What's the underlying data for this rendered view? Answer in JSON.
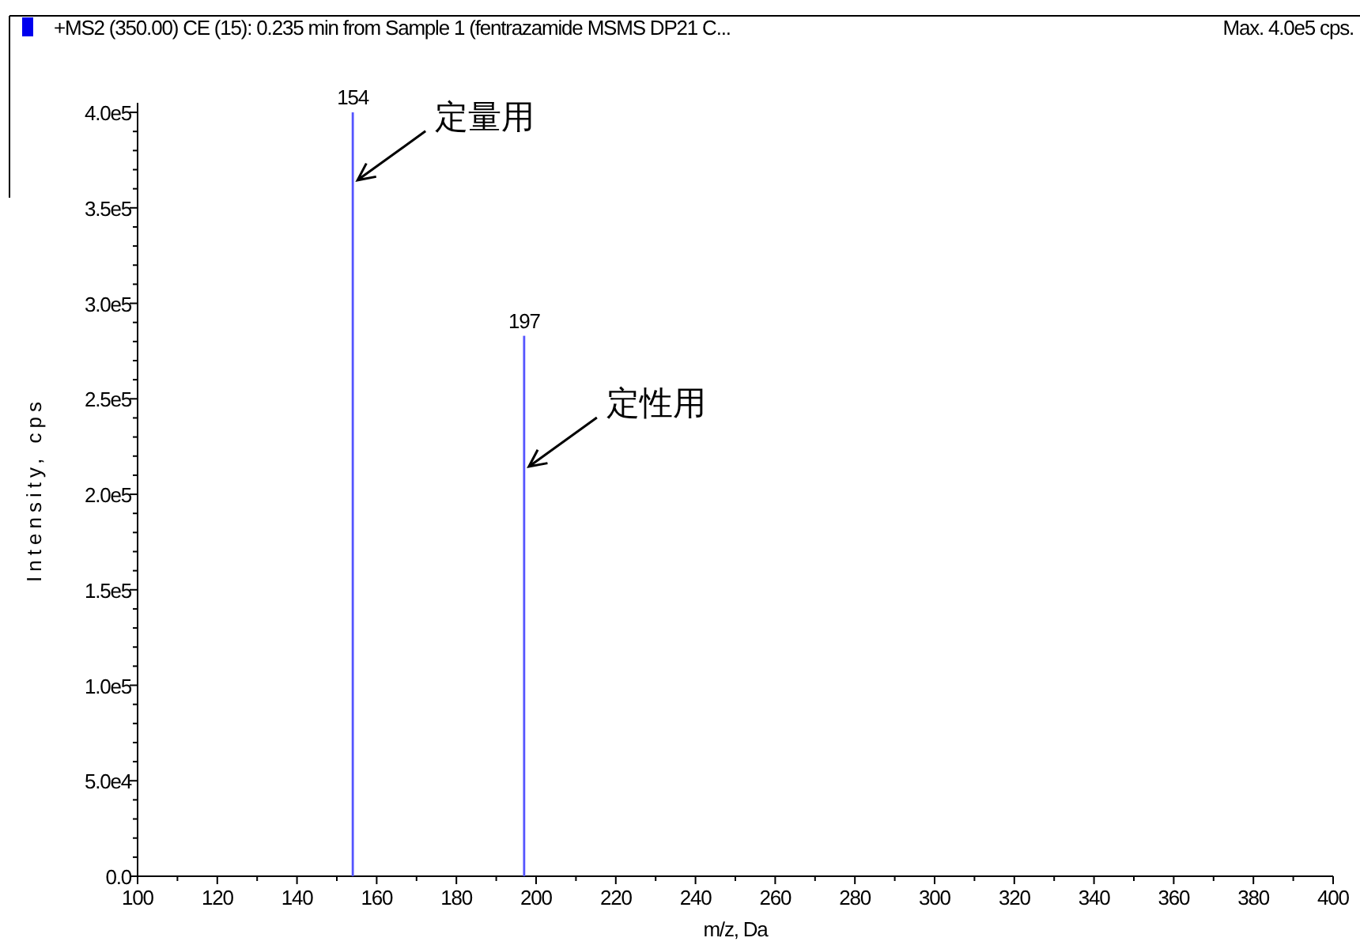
{
  "chart_data": {
    "type": "bar",
    "title": "+MS2 (350.00) CE (15): 0.235 min from Sample 1 (fentrazamide MSMS DP21 C...",
    "xlabel": "m/z, Da",
    "ylabel": "Intensity, cps",
    "x": [
      154,
      197
    ],
    "series": [
      {
        "color": "#5555ff",
        "values": [
          400000,
          283000
        ]
      }
    ],
    "xlim": [
      100,
      400
    ],
    "xticks": [
      100,
      {
        "value": 110,
        "label": null
      },
      120,
      {
        "value": 130,
        "label": null
      },
      140,
      {
        "value": 150,
        "label": null
      },
      160,
      {
        "value": 170,
        "label": null
      },
      180,
      {
        "value": 190,
        "label": null
      },
      200,
      {
        "value": 210,
        "label": null
      },
      220,
      {
        "value": 230,
        "label": null
      },
      240,
      {
        "value": 250,
        "label": null
      },
      260,
      {
        "value": 270,
        "label": null
      },
      280,
      {
        "value": 290,
        "label": null
      },
      300,
      {
        "value": 310,
        "label": null
      },
      320,
      {
        "value": 330,
        "label": null
      },
      340,
      {
        "value": 350,
        "label": null
      },
      360,
      {
        "value": 370,
        "label": null
      },
      380,
      {
        "value": 390,
        "label": null
      },
      400
    ],
    "ylim": [
      0,
      405000
    ],
    "yticks": [
      {
        "value": 0,
        "label": "0.0"
      },
      {
        "value": 10000,
        "label": null
      },
      {
        "value": 20000,
        "label": null
      },
      {
        "value": 30000,
        "label": null
      },
      {
        "value": 40000,
        "label": null
      },
      {
        "value": 50000,
        "label": "5.0e4"
      },
      {
        "value": 60000,
        "label": null
      },
      {
        "value": 70000,
        "label": null
      },
      {
        "value": 80000,
        "label": null
      },
      {
        "value": 90000,
        "label": null
      },
      {
        "value": 100000,
        "label": "1.0e5"
      },
      {
        "value": 110000,
        "label": null
      },
      {
        "value": 120000,
        "label": null
      },
      {
        "value": 130000,
        "label": null
      },
      {
        "value": 140000,
        "label": null
      },
      {
        "value": 150000,
        "label": "1.5e5"
      },
      {
        "value": 160000,
        "label": null
      },
      {
        "value": 170000,
        "label": null
      },
      {
        "value": 180000,
        "label": null
      },
      {
        "value": 190000,
        "label": null
      },
      {
        "value": 200000,
        "label": "2.0e5"
      },
      {
        "value": 210000,
        "label": null
      },
      {
        "value": 220000,
        "label": null
      },
      {
        "value": 230000,
        "label": null
      },
      {
        "value": 240000,
        "label": null
      },
      {
        "value": 250000,
        "label": "2.5e5"
      },
      {
        "value": 260000,
        "label": null
      },
      {
        "value": 270000,
        "label": null
      },
      {
        "value": 280000,
        "label": null
      },
      {
        "value": 290000,
        "label": null
      },
      {
        "value": 300000,
        "label": "3.0e5"
      },
      {
        "value": 310000,
        "label": null
      },
      {
        "value": 320000,
        "label": null
      },
      {
        "value": 330000,
        "label": null
      },
      {
        "value": 340000,
        "label": null
      },
      {
        "value": 350000,
        "label": "3.5e5"
      },
      {
        "value": 360000,
        "label": null
      },
      {
        "value": 370000,
        "label": null
      },
      {
        "value": 380000,
        "label": null
      },
      {
        "value": 390000,
        "label": null
      },
      {
        "value": 400000,
        "label": "4.0e5"
      }
    ],
    "annotations": [
      "154",
      "197",
      {
        "text": "定量用",
        "x": 154,
        "y": 362000
      },
      {
        "text": "定性用",
        "x": 197,
        "y": 212000
      }
    ],
    "subtitle": "Max. 4.0e5 cps."
  }
}
